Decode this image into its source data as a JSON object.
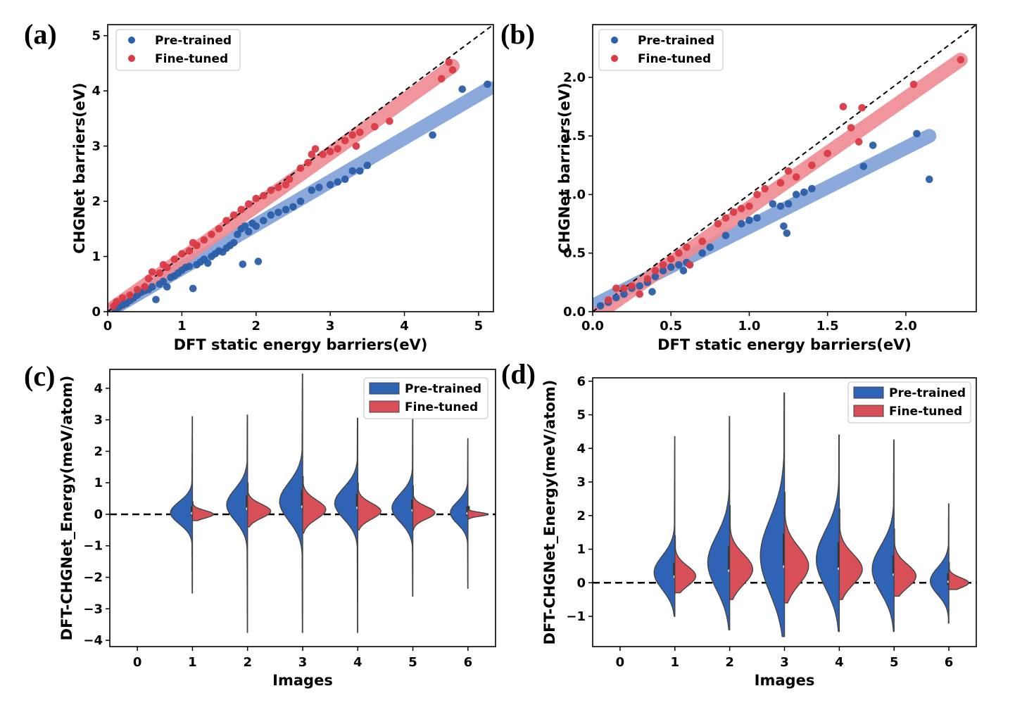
{
  "colors": {
    "pretrained": "#2a5ea8",
    "finetuned": "#d93a44",
    "pretrained_band": "#7fa1d8",
    "finetuned_band": "#ef8a92",
    "violin_blue": "#2f63b5",
    "violin_red": "#d94f58"
  },
  "chart_data": [
    {
      "panel": "(a)",
      "type": "scatter",
      "xlabel": "DFT static energy barriers(eV)",
      "ylabel": "CHGNet barriers(eV)",
      "xlim": [
        0,
        5.2
      ],
      "ylim": [
        0,
        5.2
      ],
      "xticks": [
        0,
        1,
        2,
        3,
        4,
        5
      ],
      "yticks": [
        0,
        1,
        2,
        3,
        4,
        5
      ],
      "legend": "top-left",
      "series": [
        {
          "name": "Pre-trained",
          "fit": {
            "x": [
              0,
              5.15
            ],
            "y": [
              0,
              4.05
            ]
          },
          "points": [
            [
              0.1,
              0.05
            ],
            [
              0.15,
              0.08
            ],
            [
              0.2,
              0.12
            ],
            [
              0.25,
              0.15
            ],
            [
              0.3,
              0.2
            ],
            [
              0.35,
              0.25
            ],
            [
              0.4,
              0.3
            ],
            [
              0.45,
              0.35
            ],
            [
              0.5,
              0.38
            ],
            [
              0.55,
              0.4
            ],
            [
              0.6,
              0.45
            ],
            [
              0.65,
              0.22
            ],
            [
              0.7,
              0.5
            ],
            [
              0.75,
              0.55
            ],
            [
              0.8,
              0.45
            ],
            [
              0.85,
              0.62
            ],
            [
              0.9,
              0.65
            ],
            [
              0.95,
              0.7
            ],
            [
              1.0,
              0.75
            ],
            [
              1.05,
              0.8
            ],
            [
              1.1,
              0.82
            ],
            [
              1.15,
              0.42
            ],
            [
              1.2,
              0.85
            ],
            [
              1.25,
              0.9
            ],
            [
              1.3,
              0.95
            ],
            [
              1.35,
              0.88
            ],
            [
              1.4,
              1.0
            ],
            [
              1.45,
              1.05
            ],
            [
              1.5,
              1.1
            ],
            [
              1.55,
              1.08
            ],
            [
              1.6,
              1.15
            ],
            [
              1.65,
              1.2
            ],
            [
              1.7,
              1.25
            ],
            [
              1.75,
              1.4
            ],
            [
              1.8,
              1.5
            ],
            [
              1.82,
              0.86
            ],
            [
              1.85,
              1.55
            ],
            [
              1.9,
              1.45
            ],
            [
              1.95,
              1.6
            ],
            [
              2.0,
              1.55
            ],
            [
              2.03,
              0.91
            ],
            [
              2.1,
              1.65
            ],
            [
              2.2,
              1.75
            ],
            [
              2.3,
              1.8
            ],
            [
              2.4,
              1.85
            ],
            [
              2.5,
              1.9
            ],
            [
              2.6,
              2.0
            ],
            [
              2.75,
              2.2
            ],
            [
              2.85,
              2.25
            ],
            [
              3.0,
              2.3
            ],
            [
              3.1,
              2.35
            ],
            [
              3.2,
              2.4
            ],
            [
              3.3,
              2.55
            ],
            [
              3.4,
              2.55
            ],
            [
              3.5,
              2.65
            ],
            [
              4.38,
              3.2
            ],
            [
              4.78,
              4.03
            ],
            [
              5.12,
              4.12
            ]
          ]
        },
        {
          "name": "Fine-tuned",
          "fit": {
            "x": [
              0,
              4.65
            ],
            "y": [
              0,
              4.45
            ]
          },
          "points": [
            [
              0.08,
              0.1
            ],
            [
              0.12,
              0.18
            ],
            [
              0.2,
              0.25
            ],
            [
              0.3,
              0.3
            ],
            [
              0.4,
              0.4
            ],
            [
              0.5,
              0.45
            ],
            [
              0.55,
              0.6
            ],
            [
              0.6,
              0.72
            ],
            [
              0.7,
              0.7
            ],
            [
              0.75,
              0.85
            ],
            [
              0.8,
              0.8
            ],
            [
              0.9,
              0.95
            ],
            [
              1.0,
              1.05
            ],
            [
              1.1,
              1.1
            ],
            [
              1.15,
              1.25
            ],
            [
              1.2,
              1.2
            ],
            [
              1.3,
              1.3
            ],
            [
              1.4,
              1.4
            ],
            [
              1.5,
              1.5
            ],
            [
              1.6,
              1.65
            ],
            [
              1.7,
              1.75
            ],
            [
              1.8,
              1.85
            ],
            [
              1.9,
              1.95
            ],
            [
              2.0,
              2.05
            ],
            [
              2.1,
              2.1
            ],
            [
              2.2,
              2.2
            ],
            [
              2.3,
              2.25
            ],
            [
              2.4,
              2.3
            ],
            [
              2.45,
              2.4
            ],
            [
              2.6,
              2.6
            ],
            [
              2.7,
              2.7
            ],
            [
              2.75,
              2.85
            ],
            [
              2.8,
              2.95
            ],
            [
              2.9,
              2.85
            ],
            [
              3.0,
              2.9
            ],
            [
              3.1,
              2.95
            ],
            [
              3.2,
              3.1
            ],
            [
              3.3,
              3.2
            ],
            [
              3.35,
              3.0
            ],
            [
              3.4,
              3.25
            ],
            [
              3.6,
              3.35
            ],
            [
              3.8,
              3.45
            ],
            [
              4.5,
              4.22
            ],
            [
              4.6,
              4.52
            ],
            [
              4.65,
              4.38
            ]
          ]
        }
      ]
    },
    {
      "panel": "(b)",
      "type": "scatter",
      "xlabel": "DFT static energy barriers(eV)",
      "ylabel": "CHGNet barriers(eV)",
      "xlim": [
        0,
        2.45
      ],
      "ylim": [
        0,
        2.45
      ],
      "xticks": [
        0.0,
        0.5,
        1.0,
        1.5,
        2.0
      ],
      "xticklabels": [
        "0.0",
        "0.5",
        "1.0",
        "1.5",
        "2.0"
      ],
      "yticks": [
        0.0,
        0.5,
        1.0,
        1.5,
        2.0
      ],
      "yticklabels": [
        "0.0",
        "0.5",
        "1.0",
        "1.5",
        "2.0"
      ],
      "legend": "top-left",
      "series": [
        {
          "name": "Pre-trained",
          "fit": {
            "x": [
              0,
              2.15
            ],
            "y": [
              0.05,
              1.5
            ]
          },
          "points": [
            [
              0.05,
              0.05
            ],
            [
              0.1,
              0.08
            ],
            [
              0.15,
              0.12
            ],
            [
              0.2,
              0.15
            ],
            [
              0.25,
              0.2
            ],
            [
              0.3,
              0.22
            ],
            [
              0.35,
              0.25
            ],
            [
              0.38,
              0.17
            ],
            [
              0.4,
              0.3
            ],
            [
              0.45,
              0.35
            ],
            [
              0.5,
              0.38
            ],
            [
              0.55,
              0.4
            ],
            [
              0.58,
              0.35
            ],
            [
              0.6,
              0.42
            ],
            [
              0.62,
              0.4
            ],
            [
              0.7,
              0.5
            ],
            [
              0.75,
              0.55
            ],
            [
              0.85,
              0.65
            ],
            [
              0.95,
              0.75
            ],
            [
              1.0,
              0.78
            ],
            [
              1.05,
              0.8
            ],
            [
              1.15,
              0.92
            ],
            [
              1.2,
              0.9
            ],
            [
              1.22,
              0.73
            ],
            [
              1.24,
              0.67
            ],
            [
              1.25,
              0.92
            ],
            [
              1.3,
              1.0
            ],
            [
              1.35,
              1.02
            ],
            [
              1.4,
              1.05
            ],
            [
              1.73,
              1.24
            ],
            [
              1.79,
              1.42
            ],
            [
              2.07,
              1.52
            ],
            [
              2.15,
              1.13
            ]
          ]
        },
        {
          "name": "Fine-tuned",
          "fit": {
            "x": [
              0,
              2.35
            ],
            "y": [
              -0.05,
              2.15
            ]
          },
          "points": [
            [
              0.1,
              0.1
            ],
            [
              0.15,
              0.2
            ],
            [
              0.2,
              0.2
            ],
            [
              0.25,
              0.22
            ],
            [
              0.3,
              0.15
            ],
            [
              0.35,
              0.28
            ],
            [
              0.4,
              0.35
            ],
            [
              0.45,
              0.4
            ],
            [
              0.5,
              0.45
            ],
            [
              0.55,
              0.5
            ],
            [
              0.6,
              0.55
            ],
            [
              0.62,
              0.4
            ],
            [
              0.7,
              0.6
            ],
            [
              0.8,
              0.75
            ],
            [
              0.85,
              0.8
            ],
            [
              0.9,
              0.85
            ],
            [
              0.95,
              0.88
            ],
            [
              1.0,
              0.9
            ],
            [
              1.05,
              1.0
            ],
            [
              1.1,
              1.05
            ],
            [
              1.2,
              1.1
            ],
            [
              1.25,
              1.2
            ],
            [
              1.3,
              1.15
            ],
            [
              1.4,
              1.25
            ],
            [
              1.5,
              1.35
            ],
            [
              1.6,
              1.75
            ],
            [
              1.65,
              1.57
            ],
            [
              1.7,
              1.45
            ],
            [
              1.72,
              1.74
            ],
            [
              2.05,
              1.94
            ],
            [
              2.35,
              2.15
            ]
          ]
        }
      ]
    },
    {
      "panel": "(c)",
      "type": "violin",
      "xlabel": "Images",
      "ylabel": "DFT-CHGNet_Energy(meV/atom)",
      "categories": [
        "0",
        "1",
        "2",
        "3",
        "4",
        "5",
        "6"
      ],
      "ylim": [
        -4.2,
        4.6
      ],
      "yticks": [
        -4,
        -3,
        -2,
        -1,
        0,
        1,
        2,
        3,
        4
      ],
      "yticklabels": [
        "−4",
        "−3",
        "−2",
        "−1",
        "0",
        "1",
        "2",
        "3",
        "4"
      ],
      "reference_line": 0,
      "legend": "top-right",
      "series": [
        {
          "name": "Pre-trained",
          "violins": [
            null,
            {
              "min": -2.5,
              "max": 3.1,
              "mode": 0.05,
              "peak": 0.4,
              "spread": 0.35
            },
            {
              "min": -3.75,
              "max": 3.15,
              "mode": 0.3,
              "peak": 0.38,
              "spread": 0.5
            },
            {
              "min": -3.75,
              "max": 4.45,
              "mode": 0.4,
              "peak": 0.42,
              "spread": 0.6
            },
            {
              "min": -3.75,
              "max": 3.05,
              "mode": 0.35,
              "peak": 0.42,
              "spread": 0.5
            },
            {
              "min": -2.6,
              "max": 3.35,
              "mode": 0.2,
              "peak": 0.38,
              "spread": 0.45
            },
            {
              "min": -2.35,
              "max": 2.4,
              "mode": 0.05,
              "peak": 0.32,
              "spread": 0.35
            }
          ]
        },
        {
          "name": "Fine-tuned",
          "violins": [
            null,
            {
              "min": -0.2,
              "max": 0.4,
              "mode": 0.0,
              "peak": 0.38,
              "spread": 0.12
            },
            {
              "min": -0.4,
              "max": 1.0,
              "mode": 0.1,
              "peak": 0.42,
              "spread": 0.22
            },
            {
              "min": -0.6,
              "max": 1.2,
              "mode": 0.15,
              "peak": 0.42,
              "spread": 0.3
            },
            {
              "min": -0.5,
              "max": 1.0,
              "mode": 0.1,
              "peak": 0.42,
              "spread": 0.25
            },
            {
              "min": -0.5,
              "max": 0.9,
              "mode": 0.05,
              "peak": 0.4,
              "spread": 0.2
            },
            {
              "min": -0.15,
              "max": 0.15,
              "mode": 0.0,
              "peak": 0.36,
              "spread": 0.06
            }
          ]
        }
      ]
    },
    {
      "panel": "(d)",
      "type": "violin",
      "xlabel": "Images",
      "ylabel": "DFT-CHGNet_Energy(meV/atom)",
      "categories": [
        "0",
        "1",
        "2",
        "3",
        "4",
        "5",
        "6"
      ],
      "ylim": [
        -1.9,
        6.1
      ],
      "yticks": [
        -1,
        0,
        1,
        2,
        3,
        4,
        5,
        6
      ],
      "yticklabels": [
        "−1",
        "0",
        "1",
        "2",
        "3",
        "4",
        "5",
        "6"
      ],
      "reference_line": 0,
      "legend": "top-right",
      "series": [
        {
          "name": "Pre-trained",
          "violins": [
            null,
            {
              "min": -1.0,
              "max": 4.35,
              "mode": 0.3,
              "peak": 0.38,
              "spread": 0.5
            },
            {
              "min": -1.4,
              "max": 4.95,
              "mode": 0.6,
              "peak": 0.4,
              "spread": 0.8
            },
            {
              "min": -1.6,
              "max": 5.65,
              "mode": 0.8,
              "peak": 0.44,
              "spread": 1.1
            },
            {
              "min": -1.45,
              "max": 4.4,
              "mode": 0.7,
              "peak": 0.42,
              "spread": 0.85
            },
            {
              "min": -1.45,
              "max": 4.25,
              "mode": 0.4,
              "peak": 0.4,
              "spread": 0.7
            },
            {
              "min": -1.2,
              "max": 2.35,
              "mode": 0.05,
              "peak": 0.34,
              "spread": 0.4
            }
          ]
        },
        {
          "name": "Fine-tuned",
          "violins": [
            null,
            {
              "min": -0.3,
              "max": 1.4,
              "mode": 0.2,
              "peak": 0.38,
              "spread": 0.3
            },
            {
              "min": -0.5,
              "max": 2.3,
              "mode": 0.4,
              "peak": 0.42,
              "spread": 0.45
            },
            {
              "min": -0.6,
              "max": 2.7,
              "mode": 0.5,
              "peak": 0.44,
              "spread": 0.55
            },
            {
              "min": -0.5,
              "max": 2.2,
              "mode": 0.4,
              "peak": 0.42,
              "spread": 0.45
            },
            {
              "min": -0.4,
              "max": 1.6,
              "mode": 0.2,
              "peak": 0.4,
              "spread": 0.35
            },
            {
              "min": -0.2,
              "max": 0.6,
              "mode": 0.0,
              "peak": 0.36,
              "spread": 0.15
            }
          ]
        }
      ]
    }
  ]
}
